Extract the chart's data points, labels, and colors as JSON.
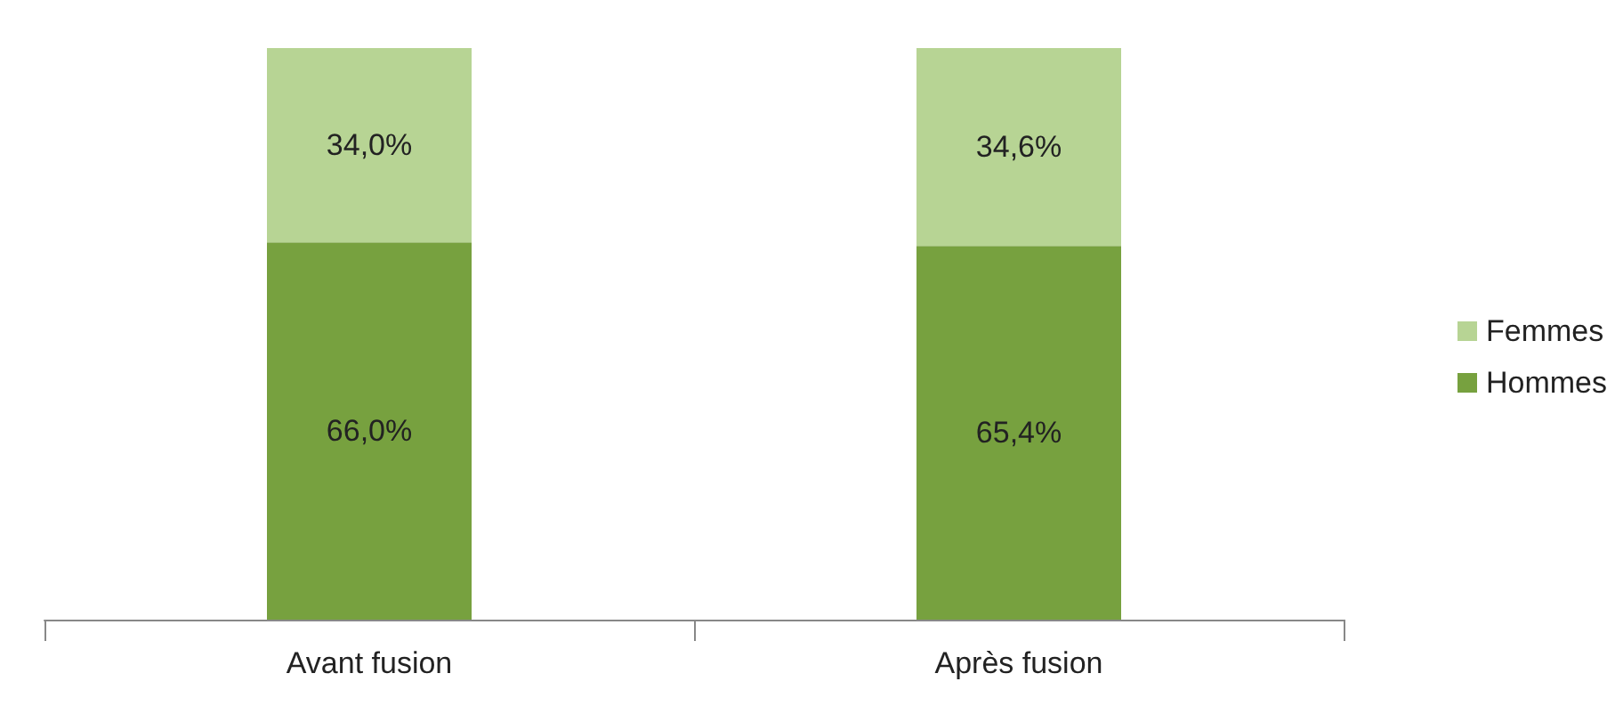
{
  "chart_data": {
    "type": "bar",
    "stacked": true,
    "categories": [
      "Avant fusion",
      "Après fusion"
    ],
    "series": [
      {
        "name": "Hommes",
        "color": "#77a13f",
        "values": [
          66.0,
          65.4
        ],
        "value_labels": [
          "66,0%",
          "65,4%"
        ]
      },
      {
        "name": "Femmes",
        "color": "#b7d494",
        "values": [
          34.0,
          34.6
        ],
        "value_labels": [
          "34,0%",
          "34,6%"
        ]
      }
    ],
    "legend": "right"
  }
}
